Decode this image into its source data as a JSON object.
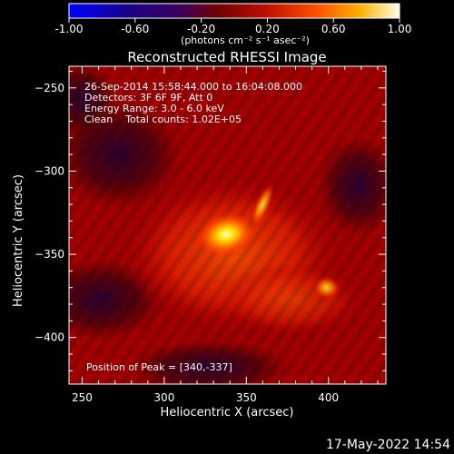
{
  "colorbar": {
    "ticks": [
      "-1.00",
      "-0.60",
      "-0.20",
      "0.20",
      "0.60",
      "1.00"
    ],
    "unit_label": "(photons cm⁻² s⁻¹ asec⁻²)",
    "range": [
      -1.0,
      1.0
    ]
  },
  "chart_data": {
    "type": "heatmap",
    "title": "Reconstructed RHESSI Image",
    "xlabel": "Heliocentric X (arcsec)",
    "ylabel": "Heliocentric Y (arcsec)",
    "xlim": [
      242,
      435
    ],
    "ylim": [
      -428,
      -237
    ],
    "x_ticks": [
      250,
      300,
      350,
      400
    ],
    "y_ticks": [
      -250,
      -300,
      -350,
      -400
    ],
    "annotations": [
      "26-Sep-2014 15:58:44.000 to 16:04:08.000",
      "Detectors: 3F 6F 9F, Att 0",
      "Energy Range: 3.0 - 6.0 keV",
      "Clean    Total counts: 1.02E+05"
    ],
    "peak_label": "Position of Peak = [340,-337]",
    "peak": [
      340,
      -337
    ],
    "sources": [
      {
        "x": 340,
        "y": -337,
        "intensity": 1.0
      },
      {
        "x": 362,
        "y": -316,
        "intensity": 0.5
      },
      {
        "x": 399,
        "y": -370,
        "intensity": 0.4
      }
    ],
    "colormap": "red-temperature"
  },
  "timestamp": "17-May-2022 14:54"
}
